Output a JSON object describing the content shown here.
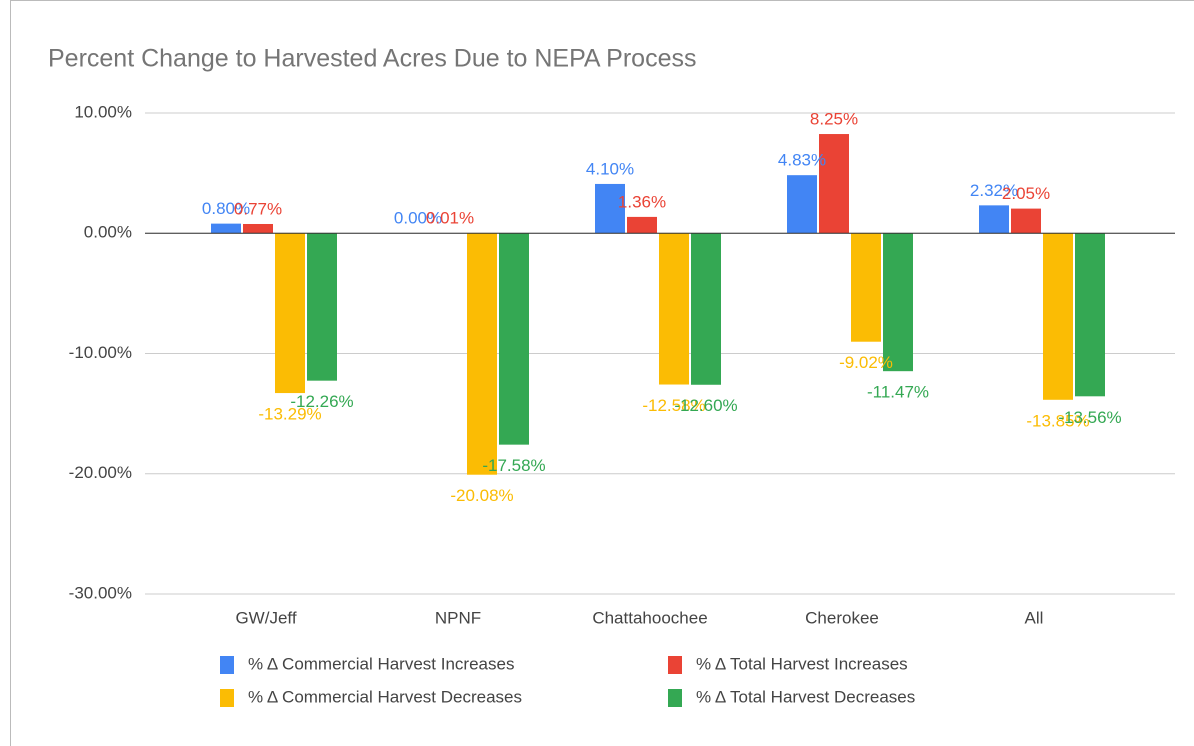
{
  "chart_data": {
    "type": "bar",
    "title": "Percent Change to Harvested Acres Due to NEPA Process",
    "categories": [
      "GW/Jeff",
      "NPNF",
      "Chattahoochee",
      "Cherokee",
      "All"
    ],
    "series": [
      {
        "name": "% Δ Commercial Harvest Increases",
        "color": "#4285f4",
        "values": [
          0.8,
          0.0,
          4.1,
          4.83,
          2.32
        ],
        "value_labels": [
          "0.80%",
          "0.00%",
          "4.10%",
          "4.83%",
          "2.32%"
        ]
      },
      {
        "name": "% Δ Total Harvest Increases",
        "color": "#ea4335",
        "values": [
          0.77,
          0.01,
          1.36,
          8.25,
          2.05
        ],
        "value_labels": [
          "0.77%",
          "0.01%",
          "1.36%",
          "8.25%",
          "2.05%"
        ]
      },
      {
        "name": "% Δ Commercial Harvest Decreases",
        "color": "#fbbc04",
        "values": [
          -13.29,
          -20.08,
          -12.58,
          -9.02,
          -13.85
        ],
        "value_labels": [
          "-13.29%",
          "-20.08%",
          "-12.58%",
          "-9.02%",
          "-13.85%"
        ]
      },
      {
        "name": "% Δ Total Harvest Decreases",
        "color": "#34a853",
        "values": [
          -12.26,
          -17.58,
          -12.6,
          -11.47,
          -13.56
        ],
        "value_labels": [
          "-12.26%",
          "-17.58%",
          "-12.60%",
          "-11.47%",
          "-13.56%"
        ]
      }
    ],
    "ylim": [
      -30,
      10
    ],
    "yticks": [
      {
        "value": -30,
        "label": "-30.00%"
      },
      {
        "value": -20,
        "label": "-20.00%"
      },
      {
        "value": -10,
        "label": "-10.00%"
      },
      {
        "value": 0,
        "label": "0.00%"
      },
      {
        "value": 10,
        "label": "10.00%"
      }
    ],
    "grid": true
  }
}
